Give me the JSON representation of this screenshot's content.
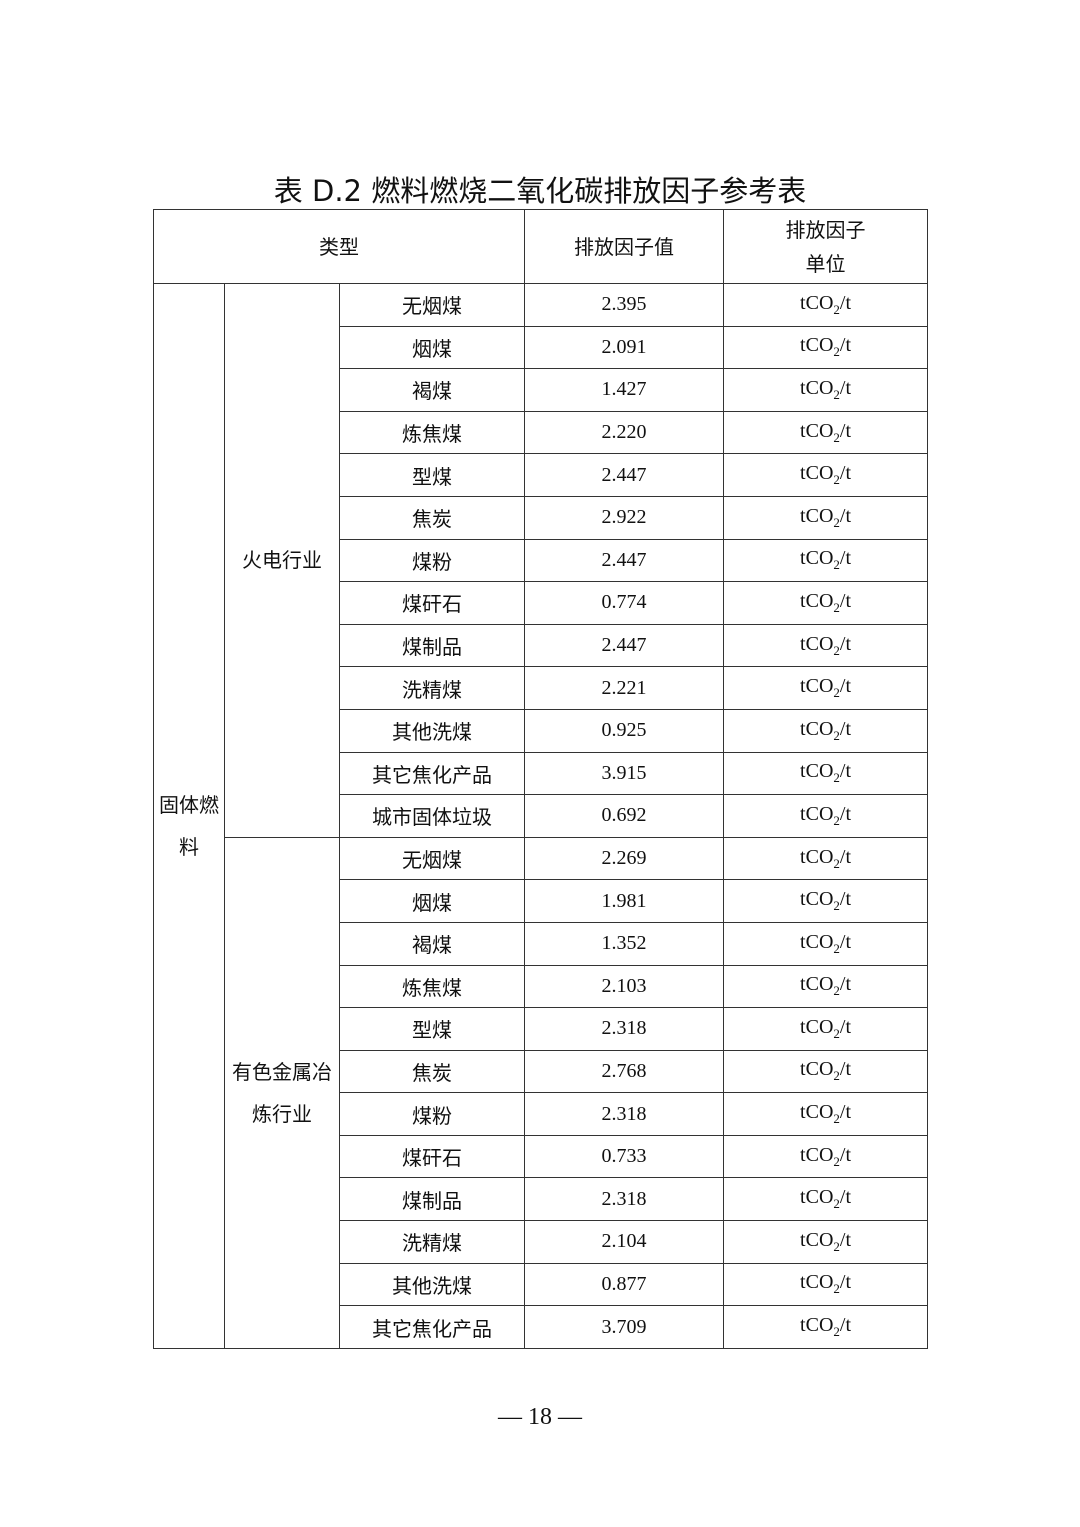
{
  "title": "表 D.2 燃料燃烧二氧化碳排放因子参考表",
  "headers": {
    "type": "类型",
    "value": "排放因子值",
    "unit_line1": "排放因子",
    "unit_line2": "单位"
  },
  "unit": {
    "prefix": "tCO",
    "sub": "2",
    "suffix": "/t"
  },
  "category": "固体燃料",
  "groups": [
    {
      "name": "火电行业",
      "rows": [
        [
          "无烟煤",
          "2.395"
        ],
        [
          "烟煤",
          "2.091"
        ],
        [
          "褐煤",
          "1.427"
        ],
        [
          "炼焦煤",
          "2.220"
        ],
        [
          "型煤",
          "2.447"
        ],
        [
          "焦炭",
          "2.922"
        ],
        [
          "煤粉",
          "2.447"
        ],
        [
          "煤矸石",
          "0.774"
        ],
        [
          "煤制品",
          "2.447"
        ],
        [
          "洗精煤",
          "2.221"
        ],
        [
          "其他洗煤",
          "0.925"
        ],
        [
          "其它焦化产品",
          "3.915"
        ],
        [
          "城市固体垃圾",
          "0.692"
        ]
      ]
    },
    {
      "name": "有色金属冶炼行业",
      "rows": [
        [
          "无烟煤",
          "2.269"
        ],
        [
          "烟煤",
          "1.981"
        ],
        [
          "褐煤",
          "1.352"
        ],
        [
          "炼焦煤",
          "2.103"
        ],
        [
          "型煤",
          "2.318"
        ],
        [
          "焦炭",
          "2.768"
        ],
        [
          "煤粉",
          "2.318"
        ],
        [
          "煤矸石",
          "0.733"
        ],
        [
          "煤制品",
          "2.318"
        ],
        [
          "洗精煤",
          "2.104"
        ],
        [
          "其他洗煤",
          "0.877"
        ],
        [
          "其它焦化产品",
          "3.709"
        ]
      ]
    }
  ],
  "page_number": "— 18 —"
}
